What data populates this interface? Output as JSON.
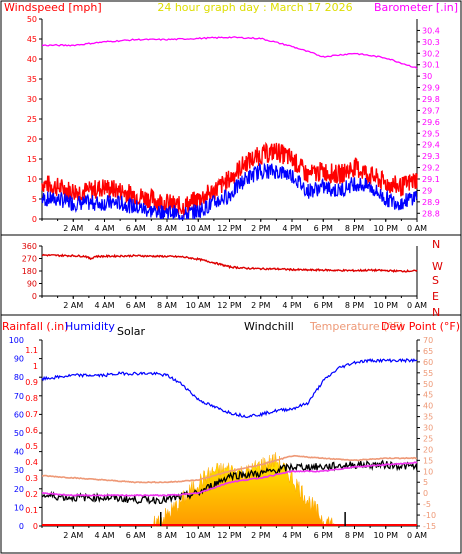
{
  "header": {
    "left": "Windspeed [mph]",
    "center": "24 hour graph day : March 17 2026",
    "right": "Barometer [.in]"
  },
  "panel3_header": {
    "rain": "Rainfall (.in)",
    "humidity": "Humidity",
    "solar": "Solar",
    "windchill": "Windchill",
    "temp": "Temperature (°F)",
    "dew": "Dew Point (°F)"
  },
  "colors": {
    "wind_gust": "#ff0000",
    "wind_avg": "#0000ff",
    "barometer": "#ff00ff",
    "direction": "#dd0000",
    "humidity": "#0000ff",
    "temperature": "#ee9977",
    "dewpoint": "#ee33ee",
    "windchill": "#000000",
    "solar": "#ffcc00",
    "rain": "#ff0000",
    "title": "#ff0000",
    "center_title": "#dddd00"
  },
  "chart_data": [
    {
      "type": "line",
      "title": "24 hour graph day : March 17 2026",
      "ylabel": "Windspeed [mph]",
      "y2label": "Barometer [.in]",
      "ylim": [
        0,
        50
      ],
      "y2lim": [
        28.75,
        30.5
      ],
      "yticks": [
        "0",
        "5",
        "10",
        "15",
        "20",
        "25",
        "30",
        "35",
        "40",
        "45",
        "50"
      ],
      "y2ticks": [
        "28.8",
        "28.9",
        "29",
        "29.1",
        "29.2",
        "29.3",
        "29.4",
        "29.5",
        "29.6",
        "29.7",
        "29.8",
        "29.9",
        "30",
        "30.1",
        "30.2",
        "30.3",
        "30.4"
      ],
      "xlabels": [
        "2 AM",
        "4 AM",
        "6 AM",
        "8 AM",
        "10 AM",
        "12 PM",
        "2 PM",
        "4 PM",
        "6 PM",
        "8 PM",
        "10 PM",
        "0 AM"
      ],
      "series": [
        {
          "name": "Windspeed (gust)",
          "x_hours": [
            0,
            1,
            2,
            3,
            4,
            5,
            6,
            7,
            8,
            9,
            10,
            11,
            12,
            13,
            14,
            15,
            16,
            17,
            18,
            19,
            20,
            21,
            22,
            23,
            24
          ],
          "values": [
            9,
            8,
            7,
            7,
            8,
            7,
            6,
            5,
            4,
            3,
            5,
            7,
            10,
            14,
            16,
            17,
            15,
            11,
            12,
            11,
            13,
            11,
            9,
            8,
            10
          ]
        },
        {
          "name": "Windspeed (avg)",
          "x_hours": [
            0,
            1,
            2,
            3,
            4,
            5,
            6,
            7,
            8,
            9,
            10,
            11,
            12,
            13,
            14,
            15,
            16,
            17,
            18,
            19,
            20,
            21,
            22,
            23,
            24
          ],
          "values": [
            5,
            5,
            4,
            4,
            4,
            4,
            3,
            2,
            2,
            1,
            2,
            4,
            6,
            10,
            12,
            12,
            11,
            7,
            8,
            7,
            9,
            8,
            5,
            4,
            6
          ]
        },
        {
          "name": "Barometer",
          "x_hours": [
            0,
            2,
            4,
            6,
            8,
            10,
            12,
            14,
            16,
            18,
            20,
            22,
            24
          ],
          "values": [
            30.27,
            30.27,
            30.3,
            30.32,
            30.32,
            30.33,
            30.34,
            30.33,
            30.26,
            30.17,
            30.2,
            30.16,
            30.07
          ]
        }
      ]
    },
    {
      "type": "scatter",
      "ylabel": "Wind direction",
      "ylim": [
        0,
        360
      ],
      "yticks": [
        "0",
        "90",
        "180",
        "270",
        "360"
      ],
      "compass": [
        "N",
        "W",
        "S",
        "E",
        "N"
      ],
      "series": [
        {
          "name": "Wind direction",
          "x_hours": [
            0,
            1,
            2,
            3,
            4,
            5,
            6,
            7,
            8,
            9,
            10,
            11,
            12,
            13,
            14,
            15,
            16,
            17,
            18,
            19,
            20,
            21,
            22,
            23,
            24
          ],
          "values": [
            295,
            292,
            290,
            285,
            286,
            288,
            290,
            287,
            285,
            282,
            265,
            240,
            210,
            200,
            196,
            195,
            190,
            187,
            187,
            184,
            183,
            186,
            183,
            179,
            181
          ]
        }
      ]
    },
    {
      "type": "line",
      "ylabel": "Rainfall (.in)",
      "y_humidity_label": "Humidity",
      "y2label": "Temperature (°F) Dew Point (°F)",
      "rain_ticks": [
        "0",
        "0.1",
        "0.2",
        "0.3",
        "0.4",
        "0.5",
        "0.6",
        "0.7",
        "0.8",
        "0.9",
        "1",
        "1.1"
      ],
      "humidity_ticks": [
        "0",
        "10",
        "20",
        "30",
        "40",
        "50",
        "60",
        "70",
        "80",
        "90",
        "100"
      ],
      "temp_ticks": [
        "-15",
        "-10",
        "-5",
        "0",
        "5",
        "10",
        "15",
        "20",
        "25",
        "30",
        "35",
        "40",
        "45",
        "50",
        "55",
        "60",
        "65",
        "70"
      ],
      "series": [
        {
          "name": "Humidity",
          "x_hours": [
            0,
            1,
            2,
            3,
            4,
            5,
            6,
            7,
            8,
            9,
            10,
            11,
            12,
            13,
            14,
            15,
            16,
            17,
            18,
            19,
            20,
            21,
            22,
            23,
            24
          ],
          "values": [
            79,
            80,
            81,
            81,
            81,
            82,
            82,
            82,
            81,
            76,
            68,
            64,
            61,
            59,
            60,
            62,
            63,
            66,
            78,
            85,
            88,
            89,
            89,
            89,
            89
          ]
        },
        {
          "name": "Temperature",
          "x_hours": [
            0,
            2,
            4,
            6,
            8,
            10,
            12,
            14,
            16,
            18,
            20,
            22,
            24
          ],
          "values": [
            8,
            7,
            6,
            5,
            5,
            6,
            10,
            13,
            17,
            16,
            15,
            16,
            16
          ]
        },
        {
          "name": "Dew Point",
          "x_hours": [
            0,
            2,
            4,
            6,
            8,
            10,
            12,
            14,
            16,
            18,
            20,
            22,
            24
          ],
          "values": [
            0,
            -1,
            -1,
            -1,
            -1,
            0,
            5,
            7,
            10,
            10,
            12,
            13,
            14
          ]
        },
        {
          "name": "Windchill",
          "x_hours": [
            0,
            2,
            4,
            6,
            8,
            10,
            12,
            14,
            16,
            18,
            20,
            22,
            24
          ],
          "values": [
            -1,
            -2,
            -2,
            -3,
            -3,
            0,
            8,
            9,
            12,
            12,
            13,
            13,
            12
          ]
        },
        {
          "name": "Solar",
          "x_hours": [
            7,
            8,
            9,
            10,
            11,
            12,
            13,
            14,
            15,
            16,
            17,
            18,
            19
          ],
          "values": [
            0,
            5,
            12,
            20,
            25,
            26,
            24,
            28,
            30,
            22,
            12,
            3,
            0
          ]
        },
        {
          "name": "Rainfall",
          "x_hours": [
            0,
            24
          ],
          "values": [
            0,
            0
          ]
        }
      ]
    }
  ]
}
